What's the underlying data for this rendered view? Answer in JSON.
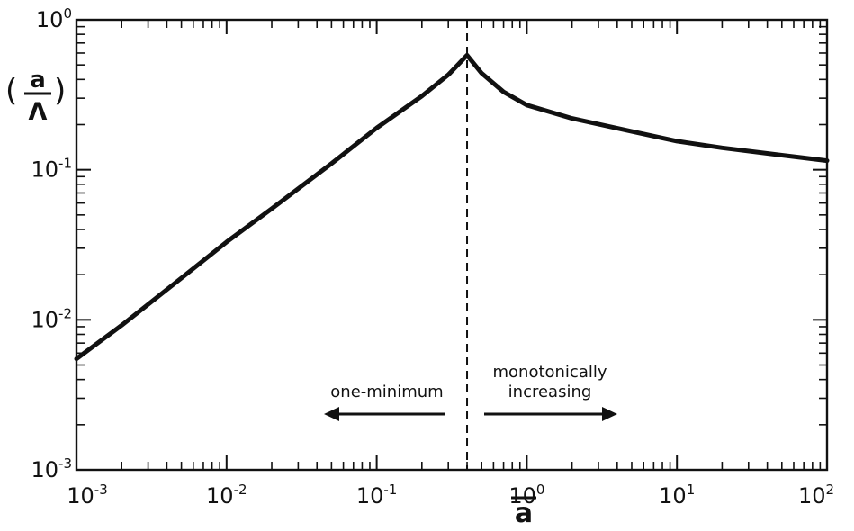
{
  "chart_data": {
    "type": "line",
    "xscale": "log",
    "yscale": "log",
    "xlim": [
      0.001,
      100
    ],
    "ylim": [
      0.001,
      1
    ],
    "x_ticks": [
      {
        "base": "10",
        "exp": "-3"
      },
      {
        "base": "10",
        "exp": "-2"
      },
      {
        "base": "10",
        "exp": "-1"
      },
      {
        "base": "10",
        "exp": "0"
      },
      {
        "base": "10",
        "exp": "1"
      },
      {
        "base": "10",
        "exp": "2"
      }
    ],
    "y_ticks": [
      {
        "base": "10",
        "exp": "-3"
      },
      {
        "base": "10",
        "exp": "-2"
      },
      {
        "base": "10",
        "exp": "-1"
      },
      {
        "base": "10",
        "exp": "0"
      }
    ],
    "xlabel": "a",
    "ylabel": {
      "open_paren": "(",
      "numerator": "a",
      "denominator": "Λ",
      "close_paren": ")"
    },
    "series": [
      {
        "x": [
          0.001,
          0.002,
          0.005,
          0.01,
          0.02,
          0.05,
          0.1,
          0.2,
          0.3,
          0.4,
          0.5,
          0.7,
          1,
          2,
          5,
          10,
          20,
          50,
          100
        ],
        "y": [
          0.0055,
          0.0092,
          0.019,
          0.033,
          0.055,
          0.11,
          0.19,
          0.31,
          0.43,
          0.58,
          0.44,
          0.33,
          0.27,
          0.22,
          0.18,
          0.155,
          0.14,
          0.125,
          0.115
        ]
      }
    ],
    "boundary_x": 0.4,
    "annotations": [
      {
        "text": "one-minimum",
        "arrow": "left"
      },
      {
        "text": "monotonically",
        "arrow": "right"
      },
      {
        "text": "increasing",
        "arrow": "right"
      }
    ],
    "grid": false
  }
}
